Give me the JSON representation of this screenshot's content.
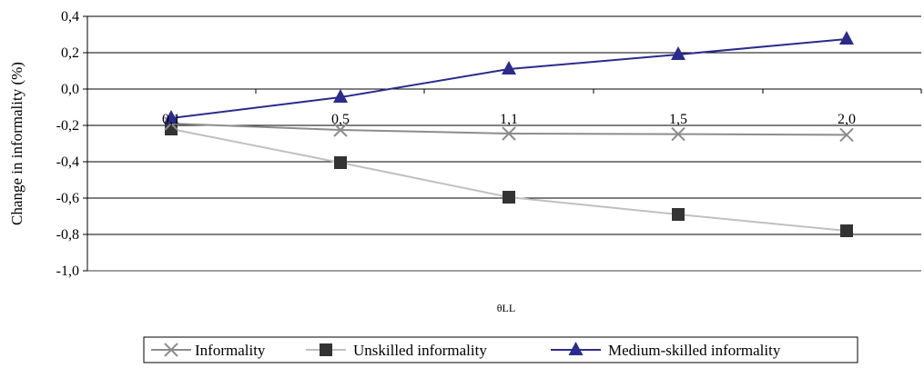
{
  "chart_data": {
    "type": "line",
    "title": "",
    "xlabel": "θLL",
    "ylabel": "Change in informality (%)",
    "categories": [
      "0,1",
      "0,5",
      "1,1",
      "1,5",
      "2,0"
    ],
    "ylim": [
      -1.0,
      0.4
    ],
    "yticks": [
      {
        "value": 0.4,
        "label": "0,4"
      },
      {
        "value": 0.2,
        "label": "0,2"
      },
      {
        "value": 0.0,
        "label": "0,0"
      },
      {
        "value": -0.2,
        "label": "-0,2"
      },
      {
        "value": -0.4,
        "label": "-0,4"
      },
      {
        "value": -0.6,
        "label": "-0,6"
      },
      {
        "value": -0.8,
        "label": "-0,8"
      },
      {
        "value": -1.0,
        "label": "-1,0"
      }
    ],
    "grid": true,
    "legend_position": "bottom",
    "series": [
      {
        "name": "Informality",
        "values": [
          -0.19,
          -0.225,
          -0.245,
          -0.248,
          -0.252
        ],
        "line_color": "#8c8c8c",
        "marker": "x",
        "marker_color": "#8c8c8c"
      },
      {
        "name": "Unskilled informality",
        "values": [
          -0.22,
          -0.405,
          -0.595,
          -0.69,
          -0.78
        ],
        "line_color": "#c0c0c0",
        "marker": "square",
        "marker_color": "#333333"
      },
      {
        "name": "Medium-skilled informality",
        "values": [
          -0.16,
          -0.045,
          0.11,
          0.19,
          0.275
        ],
        "line_color": "#2b2b8c",
        "marker": "triangle",
        "marker_color": "#2b2b8c"
      }
    ]
  }
}
